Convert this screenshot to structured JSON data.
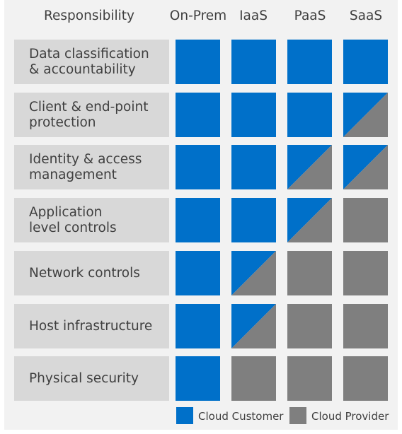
{
  "header": {
    "responsibility": "Responsibility",
    "columns": [
      "On-Prem",
      "IaaS",
      "PaaS",
      "SaaS"
    ]
  },
  "rows": [
    {
      "label": "Data classification\n& accountability",
      "cells": [
        "customer",
        "customer",
        "customer",
        "customer"
      ]
    },
    {
      "label": "Client & end-point\nprotection",
      "cells": [
        "customer",
        "customer",
        "customer",
        "shared"
      ]
    },
    {
      "label": "Identity & access\nmanagement",
      "cells": [
        "customer",
        "customer",
        "shared",
        "shared"
      ]
    },
    {
      "label": "Application\nlevel controls",
      "cells": [
        "customer",
        "customer",
        "shared",
        "provider"
      ]
    },
    {
      "label": "Network controls",
      "cells": [
        "customer",
        "shared",
        "provider",
        "provider"
      ]
    },
    {
      "label": "Host infrastructure",
      "cells": [
        "customer",
        "shared",
        "provider",
        "provider"
      ]
    },
    {
      "label": "Physical security",
      "cells": [
        "customer",
        "provider",
        "provider",
        "provider"
      ]
    }
  ],
  "legend": {
    "customer_label": "Cloud Customer",
    "provider_label": "Cloud Provider"
  },
  "colors": {
    "customer": "#0070c9",
    "provider": "#7f7f7f",
    "label_bg": "#d8d8d8",
    "frame_bg": "#f2f2f2"
  }
}
